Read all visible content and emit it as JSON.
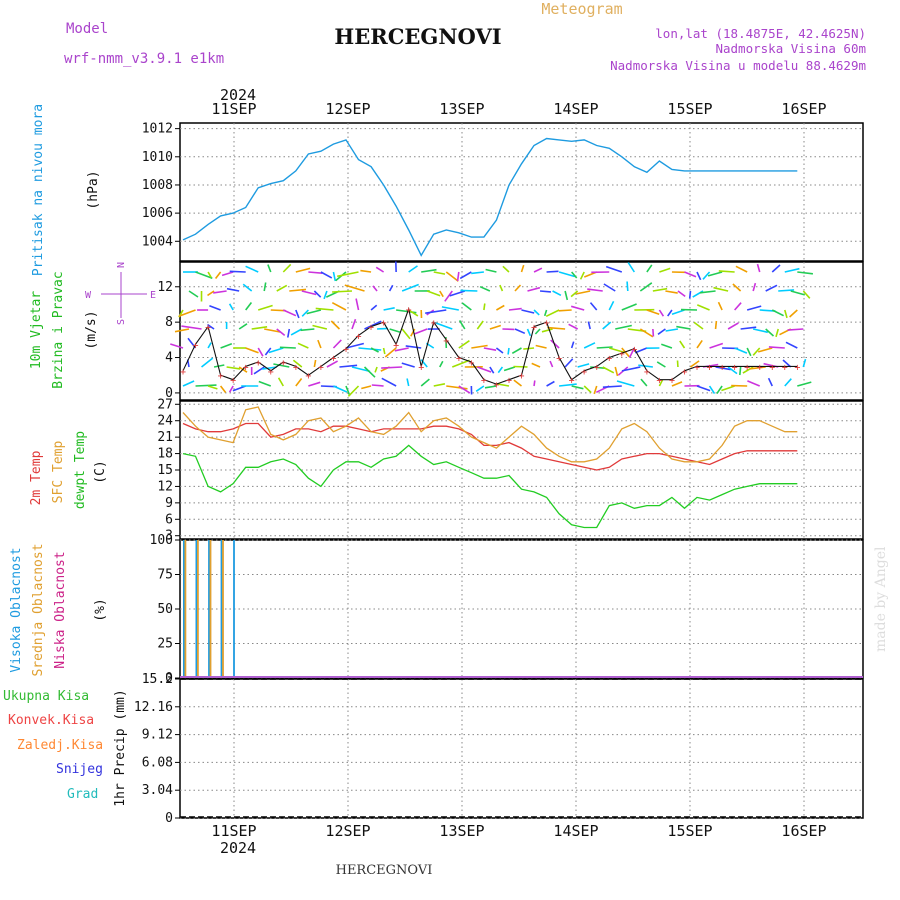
{
  "header": {
    "model_label": "Model",
    "model_name": "wrf-nmm_v3.9.1 e1km",
    "title": "HERCEGNOVI",
    "product": "Meteogram",
    "lonlat": "lon,lat (18.4875E, 42.4625N)",
    "elevation": "Nadmorska Visina 60m",
    "model_elevation": "Nadmorska Visina u modelu 88.4629m",
    "footer_station": "HERCEGNOVI",
    "watermark": "made by Angel",
    "year": "2024"
  },
  "colors": {
    "pressure": "#1e9be0",
    "wind": "#00bb22",
    "temp2m": "#e03a3a",
    "sfc_temp": "#e0a030",
    "dewpt": "#22cc22",
    "high_cloud": "#1e9be0",
    "mid_cloud": "#e0a030",
    "low_cloud": "#cc2288",
    "precip_total": "#33bb33",
    "precip_conv": "#ee4444",
    "precip_frozen": "#ff8833",
    "precip_snow": "#3333dd",
    "precip_hail": "#22bbbb",
    "model_label": "#aa44cc"
  },
  "chart_data": [
    {
      "type": "line",
      "panel": "pressure",
      "ylabel": [
        "Pritisak na nivou mora",
        "(hPa)"
      ],
      "x_days": [
        "11SEP",
        "12SEP",
        "13SEP",
        "14SEP",
        "15SEP",
        "16SEP"
      ],
      "ylim": [
        1002.6,
        1012.4
      ],
      "yticks": [
        1004,
        1006,
        1008,
        1010,
        1012
      ],
      "grid": true,
      "x": [
        0,
        3,
        6,
        9,
        12,
        15,
        18,
        21,
        24,
        27,
        30,
        33,
        36,
        39,
        42,
        45,
        48,
        51,
        54,
        57,
        60,
        63,
        66,
        69,
        72,
        75,
        78,
        81,
        84,
        87,
        90,
        93,
        96,
        99,
        102,
        105,
        108,
        111,
        114,
        117,
        120,
        123,
        126,
        129,
        132,
        135,
        138,
        141,
        144,
        147
      ],
      "values": [
        1004.1,
        1004.5,
        1005.2,
        1005.8,
        1006.0,
        1006.4,
        1007.8,
        1008.1,
        1008.3,
        1009.0,
        1010.2,
        1010.4,
        1010.9,
        1011.2,
        1009.8,
        1009.3,
        1008.0,
        1006.5,
        1004.8,
        1003.0,
        1004.5,
        1004.8,
        1004.6,
        1004.3,
        1004.3,
        1005.5,
        1008.0,
        1009.5,
        1010.8,
        1011.3,
        1011.2,
        1011.1,
        1011.2,
        1010.8,
        1010.6,
        1010.0,
        1009.3,
        1008.9,
        1009.7,
        1009.1,
        1009.0,
        1009.0,
        1009.0,
        1009.0,
        1009.0,
        1009.0,
        1009.0,
        1009.0,
        1009.0,
        1009.0
      ]
    },
    {
      "type": "line",
      "panel": "wind",
      "ylabel": [
        "10m Vjetar",
        "Brzina i Pravac",
        "(m/s)"
      ],
      "compass": [
        "N",
        "S",
        "W",
        "E"
      ],
      "ylim": [
        -0.8,
        14.8
      ],
      "yticks": [
        0,
        4,
        8,
        12
      ],
      "grid": true,
      "x": [
        0,
        3,
        6,
        9,
        12,
        15,
        18,
        21,
        24,
        27,
        30,
        33,
        36,
        39,
        42,
        45,
        48,
        51,
        54,
        57,
        60,
        63,
        66,
        69,
        72,
        75,
        78,
        81,
        84,
        87,
        90,
        93,
        96,
        99,
        102,
        105,
        108,
        111,
        114,
        117,
        120,
        123,
        126,
        129,
        132,
        135,
        138,
        141,
        144,
        147
      ],
      "values": [
        2.5,
        5.5,
        7.5,
        2.0,
        1.5,
        3.0,
        3.5,
        2.5,
        3.5,
        3.0,
        2.0,
        3.0,
        4.0,
        5.0,
        6.5,
        7.5,
        8.0,
        5.5,
        9.5,
        3.0,
        8.0,
        6.0,
        4.0,
        3.5,
        1.5,
        1.0,
        1.5,
        2.0,
        7.5,
        8.0,
        4.0,
        1.5,
        2.5,
        3.0,
        4.0,
        4.5,
        5.0,
        2.5,
        1.5,
        1.5,
        2.5,
        3.0,
        3.0,
        3.0,
        3.0,
        3.0,
        3.0,
        3.0,
        3.0,
        3.0
      ]
    },
    {
      "type": "line",
      "panel": "temperature",
      "ylabel": [
        "2m Temp",
        "SFC Temp",
        "dewpt Temp",
        "(C)"
      ],
      "ylim": [
        2.4,
        27.6
      ],
      "yticks": [
        3,
        6,
        9,
        12,
        15,
        18,
        21,
        24,
        27
      ],
      "grid": true,
      "x": [
        0,
        3,
        6,
        9,
        12,
        15,
        18,
        21,
        24,
        27,
        30,
        33,
        36,
        39,
        42,
        45,
        48,
        51,
        54,
        57,
        60,
        63,
        66,
        69,
        72,
        75,
        78,
        81,
        84,
        87,
        90,
        93,
        96,
        99,
        102,
        105,
        108,
        111,
        114,
        117,
        120,
        123,
        126,
        129,
        132,
        135,
        138,
        141,
        144,
        147
      ],
      "series": [
        {
          "name": "2m Temp",
          "values": [
            23.5,
            22.5,
            22.0,
            22.0,
            22.5,
            23.5,
            23.5,
            21.0,
            21.5,
            22.5,
            22.5,
            22.0,
            23.0,
            23.0,
            22.5,
            22.0,
            22.5,
            22.5,
            22.5,
            22.5,
            23.0,
            23.0,
            22.5,
            21.5,
            19.5,
            19.5,
            20.0,
            19.0,
            17.5,
            17.0,
            16.5,
            16.0,
            15.5,
            15.0,
            15.5,
            17.0,
            17.5,
            18.0,
            18.0,
            17.5,
            17.0,
            16.5,
            16.0,
            17.0,
            18.0,
            18.5,
            18.5,
            18.5,
            18.5,
            18.5
          ]
        },
        {
          "name": "SFC Temp",
          "values": [
            25.5,
            23.0,
            21.0,
            20.5,
            20.0,
            26.0,
            26.5,
            21.5,
            20.5,
            21.5,
            24.0,
            24.5,
            22.0,
            23.0,
            24.5,
            22.0,
            21.5,
            23.0,
            25.5,
            22.0,
            24.0,
            24.5,
            23.0,
            21.0,
            20.0,
            19.0,
            21.0,
            23.0,
            21.5,
            19.0,
            17.5,
            16.5,
            16.5,
            17.0,
            19.0,
            22.5,
            23.5,
            22.0,
            19.0,
            17.0,
            16.5,
            16.5,
            17.0,
            19.5,
            23.0,
            24.0,
            24.0,
            23.0,
            22.0,
            22.0
          ]
        },
        {
          "name": "dewpt Temp",
          "values": [
            18.0,
            17.5,
            12.0,
            11.0,
            12.5,
            15.5,
            15.5,
            16.5,
            17.0,
            16.0,
            13.5,
            12.0,
            15.0,
            16.5,
            16.5,
            15.5,
            17.0,
            17.5,
            19.5,
            17.5,
            16.0,
            16.5,
            15.5,
            14.5,
            13.5,
            13.5,
            14.0,
            11.5,
            11.0,
            10.0,
            7.0,
            5.0,
            4.5,
            4.5,
            8.5,
            9.0,
            8.0,
            8.5,
            8.5,
            10.0,
            8.0,
            10.0,
            9.5,
            10.5,
            11.5,
            12.0,
            12.5,
            12.5,
            12.5,
            12.5
          ]
        }
      ]
    },
    {
      "type": "bar",
      "panel": "cloud",
      "ylabel": [
        "Visoka Oblacnost",
        "Srednja Oblacnost",
        "Niska Oblacnost",
        "(%)"
      ],
      "ylim": [
        0,
        100
      ],
      "yticks": [
        0,
        25,
        50,
        75,
        100
      ],
      "grid": true,
      "x": [
        0,
        3,
        6,
        9,
        12,
        15,
        18,
        21,
        24,
        27,
        30,
        33,
        36,
        39,
        42,
        45,
        48,
        51,
        54,
        57,
        60,
        63,
        66,
        69,
        72,
        75,
        78,
        81,
        84,
        87,
        90,
        93,
        96,
        99,
        102,
        105,
        108,
        111,
        114,
        117,
        120,
        123,
        126,
        129,
        132,
        135,
        138,
        141,
        144,
        147
      ],
      "series": [
        {
          "name": "Visoka Oblacnost",
          "values": [
            100,
            100,
            100,
            100,
            100,
            0,
            0,
            0,
            0,
            0,
            0,
            0,
            0,
            0,
            0,
            0,
            0,
            0,
            0,
            0,
            0,
            0,
            0,
            0,
            0,
            0,
            0,
            0,
            0,
            0,
            0,
            0,
            0,
            0,
            0,
            0,
            0,
            0,
            0,
            0,
            0,
            0,
            0,
            0,
            0,
            0,
            0,
            0,
            0,
            0
          ]
        },
        {
          "name": "Srednja Oblacnost",
          "values": [
            100,
            100,
            100,
            100,
            0,
            0,
            0,
            0,
            0,
            0,
            0,
            0,
            0,
            0,
            0,
            0,
            0,
            0,
            0,
            0,
            0,
            0,
            0,
            0,
            0,
            0,
            0,
            0,
            0,
            0,
            0,
            0,
            0,
            0,
            0,
            0,
            0,
            0,
            0,
            0,
            0,
            0,
            0,
            0,
            0,
            0,
            0,
            0,
            0,
            0
          ]
        },
        {
          "name": "Niska Oblacnost",
          "values": [
            0,
            0,
            0,
            0,
            0,
            0,
            0,
            0,
            0,
            0,
            0,
            0,
            0,
            0,
            0,
            0,
            0,
            0,
            0,
            0,
            0,
            0,
            0,
            0,
            0,
            0,
            0,
            0,
            0,
            0,
            0,
            0,
            0,
            0,
            0,
            0,
            0,
            0,
            0,
            0,
            0,
            0,
            0,
            0,
            0,
            0,
            0,
            0,
            0,
            0
          ]
        }
      ]
    },
    {
      "type": "bar",
      "panel": "precip",
      "ylabel": [
        "1hr Precip (mm)"
      ],
      "legend": [
        "Ukupna Kisa",
        "Konvek.Kisa",
        "Zaledj.Kisa",
        "Snijeg",
        "Grad"
      ],
      "ylim": [
        0,
        15.2
      ],
      "yticks": [
        0,
        3.04,
        6.08,
        9.12,
        12.16,
        15.2
      ],
      "ytick_labels": [
        "0",
        "3.04",
        "6.08",
        "9.12",
        "12.16",
        "15.2"
      ],
      "grid": true,
      "x": [
        60,
        62,
        64,
        65,
        66,
        67,
        68,
        69,
        70,
        71,
        72,
        73,
        74,
        75,
        76,
        77,
        78,
        79,
        80,
        81,
        82,
        83,
        84,
        85,
        86,
        87,
        88,
        89,
        90,
        91,
        92,
        93,
        94,
        95,
        96,
        97,
        98,
        99,
        100,
        101,
        102,
        103,
        104,
        105,
        106,
        107,
        108,
        109,
        110,
        111,
        112,
        113,
        114,
        115,
        116,
        117,
        118,
        119,
        120,
        121,
        122,
        123,
        124,
        125,
        126,
        127,
        128,
        129,
        130,
        131,
        132,
        133,
        134,
        135,
        136,
        137,
        138,
        139,
        140,
        141,
        142,
        143,
        144,
        145,
        146,
        147,
        148,
        149,
        150,
        151,
        152,
        153,
        154,
        155,
        156,
        157,
        158,
        159,
        160,
        161
      ],
      "series": [
        {
          "name": "Ukupna Kisa",
          "values": [
            0,
            0,
            0,
            0,
            0,
            0,
            0,
            0,
            0,
            0,
            0,
            0,
            0,
            0,
            0,
            0,
            0,
            0,
            0,
            0,
            0,
            0,
            0,
            0,
            0,
            0,
            0,
            0,
            0,
            0,
            0,
            0,
            0,
            0,
            0,
            0,
            0,
            0,
            0,
            0,
            0,
            0,
            0,
            0,
            0,
            0,
            0,
            0,
            0,
            0,
            0,
            0,
            0,
            0,
            0,
            0,
            0,
            0,
            0,
            0,
            0,
            0,
            0,
            0,
            0,
            0,
            0,
            0,
            0,
            0,
            0,
            0,
            0,
            0,
            0,
            0,
            0,
            0,
            0,
            0,
            0,
            0,
            0,
            0,
            0,
            0,
            0,
            0,
            0,
            0,
            0,
            0,
            0,
            0,
            0,
            0,
            0,
            0,
            0,
            0
          ]
        }
      ]
    }
  ]
}
